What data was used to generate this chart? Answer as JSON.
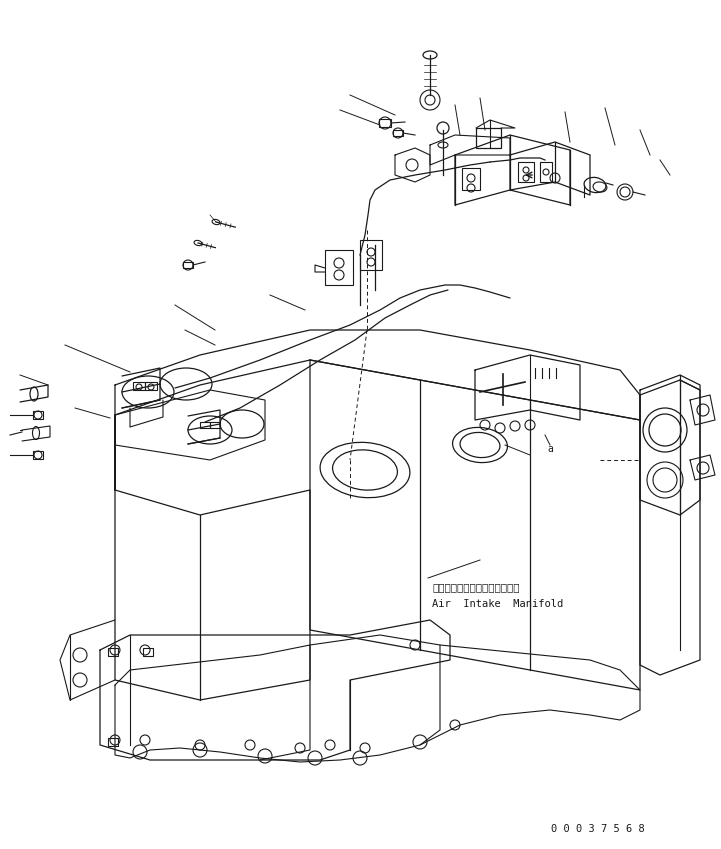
{
  "background_color": "#ffffff",
  "line_color": "#1a1a1a",
  "annotation_japanese": "エアーインテークマニホールド",
  "annotation_english": "Air  Intake  Manifold",
  "serial_number": "0 0 0 3 7 5 6 8",
  "fig_width": 7.21,
  "fig_height": 8.49,
  "dpi": 100
}
